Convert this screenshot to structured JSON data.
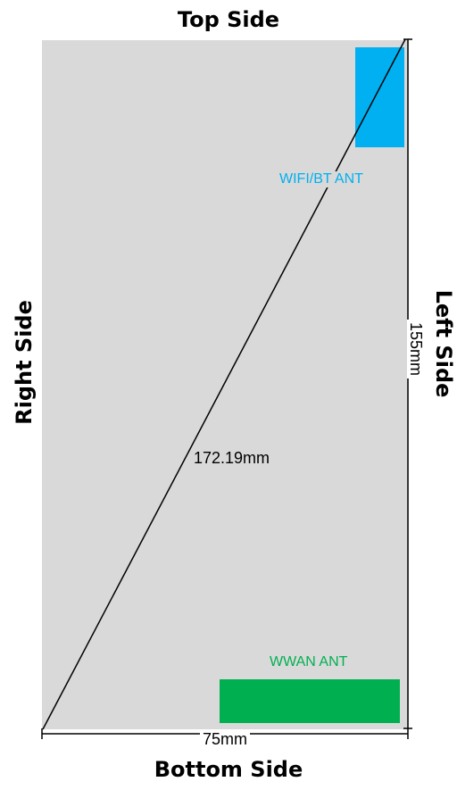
{
  "sides": {
    "top": "Top Side",
    "bottom": "Bottom Side",
    "left": "Left Side",
    "right": "Right Side"
  },
  "antennas": {
    "wifi": {
      "label": "WIFI/BT ANT",
      "color": "#00b0f0"
    },
    "wwan": {
      "label": "WWAN ANT",
      "color": "#00b050"
    }
  },
  "dimensions": {
    "width": "75mm",
    "height": "155mm",
    "diagonal": "172.19mm"
  },
  "colors": {
    "board": "#d9d9d9",
    "lines": "#000000"
  }
}
